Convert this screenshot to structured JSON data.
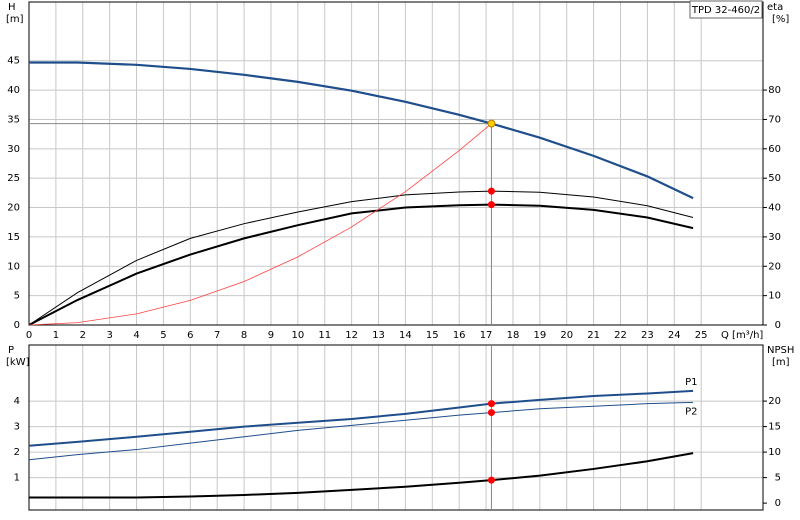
{
  "chart_data": [
    {
      "type": "line",
      "title": "TPD 32-460/2",
      "y_label": "H",
      "y_unit": "[m]",
      "y2_label": "eta",
      "y2_unit": "[%]",
      "x_label": "Q [m³/h]",
      "x": [
        0,
        1.8,
        4,
        6,
        8,
        10,
        12,
        14,
        16,
        17.2,
        19,
        21,
        23,
        24.7
      ],
      "xlim": [
        0,
        27.3
      ],
      "xticks": [
        0,
        1,
        2,
        3,
        4,
        5,
        6,
        7,
        8,
        9,
        10,
        11,
        12,
        13,
        14,
        15,
        16,
        17,
        18,
        19,
        20,
        21,
        22,
        23,
        24,
        25
      ],
      "ylim": [
        0,
        55
      ],
      "yticks": [
        0,
        5,
        10,
        15,
        20,
        25,
        30,
        35,
        40,
        45
      ],
      "y2lim": [
        0,
        110
      ],
      "y2ticks": [
        0,
        10,
        20,
        30,
        40,
        50,
        60,
        70,
        80
      ],
      "grid": true,
      "operating_point": 17.2,
      "series": [
        {
          "color": "#1f4e8c",
          "width": 2.2,
          "marker": "#ffcc00",
          "values": [
            44.7,
            44.7,
            44.3,
            43.6,
            42.6,
            41.4,
            39.9,
            38.0,
            35.8,
            34.3,
            31.9,
            28.8,
            25.3,
            21.6
          ]
        },
        {
          "color": "#000000",
          "width": 1,
          "axis": "y2",
          "marker": "#ff0000",
          "values": [
            0,
            11,
            22,
            29.5,
            34.5,
            38.5,
            42,
            44.3,
            45.3,
            45.6,
            45.2,
            43.6,
            40.6,
            36.6
          ]
        },
        {
          "color": "#000000",
          "width": 2,
          "axis": "y2",
          "marker": "#ff0000",
          "values": [
            0,
            8.5,
            17.5,
            24,
            29.5,
            34,
            38,
            40,
            40.8,
            41,
            40.6,
            39.2,
            36.6,
            33
          ]
        },
        {
          "color": "#ff4040",
          "width": 0.8,
          "values": [
            0,
            0.4,
            1.9,
            4.2,
            7.4,
            11.6,
            16.7,
            22.7,
            29.7,
            34.3,
            null,
            null,
            null,
            null
          ]
        }
      ]
    },
    {
      "type": "line",
      "y_label": "P",
      "y_unit": "[kW]",
      "y2_label": "NPSH",
      "y2_unit": "[m]",
      "x": [
        0,
        1.8,
        4,
        6,
        8,
        10,
        12,
        14,
        16,
        17.2,
        19,
        21,
        23,
        24.7
      ],
      "xlim": [
        0,
        27.3
      ],
      "ylim": [
        -0.27,
        6.2
      ],
      "yticks": [
        1,
        2,
        3,
        4
      ],
      "y2lim": [
        -1.35,
        31
      ],
      "y2ticks": [
        0,
        5,
        10,
        15,
        20
      ],
      "grid": true,
      "operating_point": 17.2,
      "series": [
        {
          "name": "P1",
          "color": "#1f4e8c",
          "width": 2,
          "marker": "#ff0000",
          "values": [
            2.25,
            2.4,
            2.6,
            2.8,
            3.0,
            3.15,
            3.3,
            3.5,
            3.75,
            3.9,
            4.05,
            4.2,
            4.3,
            4.4
          ]
        },
        {
          "name": "P2",
          "color": "#1f4e8c",
          "width": 1,
          "marker": "#ff0000",
          "values": [
            1.7,
            1.9,
            2.1,
            2.35,
            2.6,
            2.85,
            3.05,
            3.25,
            3.45,
            3.55,
            3.7,
            3.8,
            3.9,
            3.95
          ]
        },
        {
          "color": "#000000",
          "width": 2,
          "axis": "y2",
          "marker": "#ff0000",
          "values": [
            1.1,
            1.1,
            1.1,
            1.3,
            1.6,
            2.0,
            2.6,
            3.2,
            4.0,
            4.5,
            5.4,
            6.7,
            8.2,
            9.8
          ]
        }
      ]
    }
  ]
}
